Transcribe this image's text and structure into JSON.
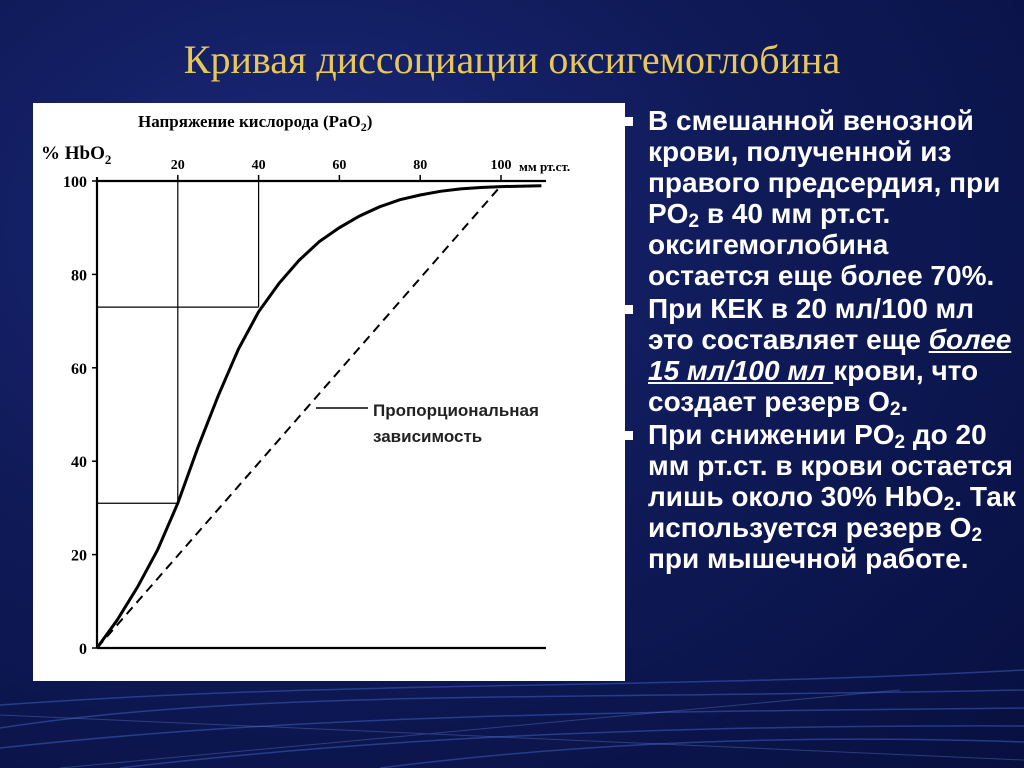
{
  "slide": {
    "title": "Кривая диссоциации оксигемоглобина",
    "accent_color": "#e7c75a",
    "background_color": "#0f1a58"
  },
  "chart_data": {
    "type": "line",
    "title": "Напряжение кислорода",
    "title_sub_parts": [
      "(PaO",
      "2",
      ")"
    ],
    "xlabel_unit": "мм рт.ст.",
    "ylabel_parts": [
      "% HbO",
      "2"
    ],
    "xlim": [
      0,
      100
    ],
    "ylim": [
      0,
      100
    ],
    "x_ticks": [
      20,
      40,
      60,
      80,
      100
    ],
    "y_ticks": [
      0,
      20,
      40,
      60,
      80,
      100
    ],
    "series": [
      {
        "style": "solid",
        "x": [
          0,
          5,
          10,
          15,
          20,
          25,
          30,
          35,
          40,
          45,
          50,
          55,
          60,
          65,
          70,
          75,
          80,
          85,
          90,
          95,
          100,
          110
        ],
        "y": [
          0,
          6,
          13,
          21,
          31,
          43,
          54,
          64,
          72,
          78,
          83,
          87,
          90,
          92.5,
          94.5,
          96,
          97,
          97.8,
          98.3,
          98.6,
          98.8,
          99
        ]
      },
      {
        "name": "Пропорциональная зависимость",
        "style": "dashed",
        "x": [
          0,
          100
        ],
        "y": [
          0,
          99
        ]
      }
    ],
    "reference_lines": [
      {
        "x": 20,
        "y": 31
      },
      {
        "x": 40,
        "y": 73
      }
    ],
    "annotation": [
      "Пропорциональная",
      "зависимость"
    ]
  },
  "bullets": [
    {
      "parts": [
        {
          "t": "В смешанной венозной крови, полученной из правого предсердия, при PO"
        },
        {
          "t": "2",
          "sub": true
        },
        {
          "t": " в 40 мм рт.ст. оксигемоглобина остается еще более 70%."
        }
      ]
    },
    {
      "parts": [
        {
          "t": "При КЕК в 20 мл/100 мл это составляет еще "
        },
        {
          "t": "более  15 мл/100 мл ",
          "underline": true
        },
        {
          "t": "крови, что создает резерв O"
        },
        {
          "t": "2",
          "sub": true
        },
        {
          "t": "."
        }
      ]
    },
    {
      "parts": [
        {
          "t": "При снижении PO"
        },
        {
          "t": "2",
          "sub": true
        },
        {
          "t": " до 20 мм рт.ст. в крови остается лишь около 30% HbO"
        },
        {
          "t": "2",
          "sub": true
        },
        {
          "t": ". Так используется резерв O"
        },
        {
          "t": "2",
          "sub": true
        },
        {
          "t": " при мышечной работе."
        }
      ]
    }
  ]
}
